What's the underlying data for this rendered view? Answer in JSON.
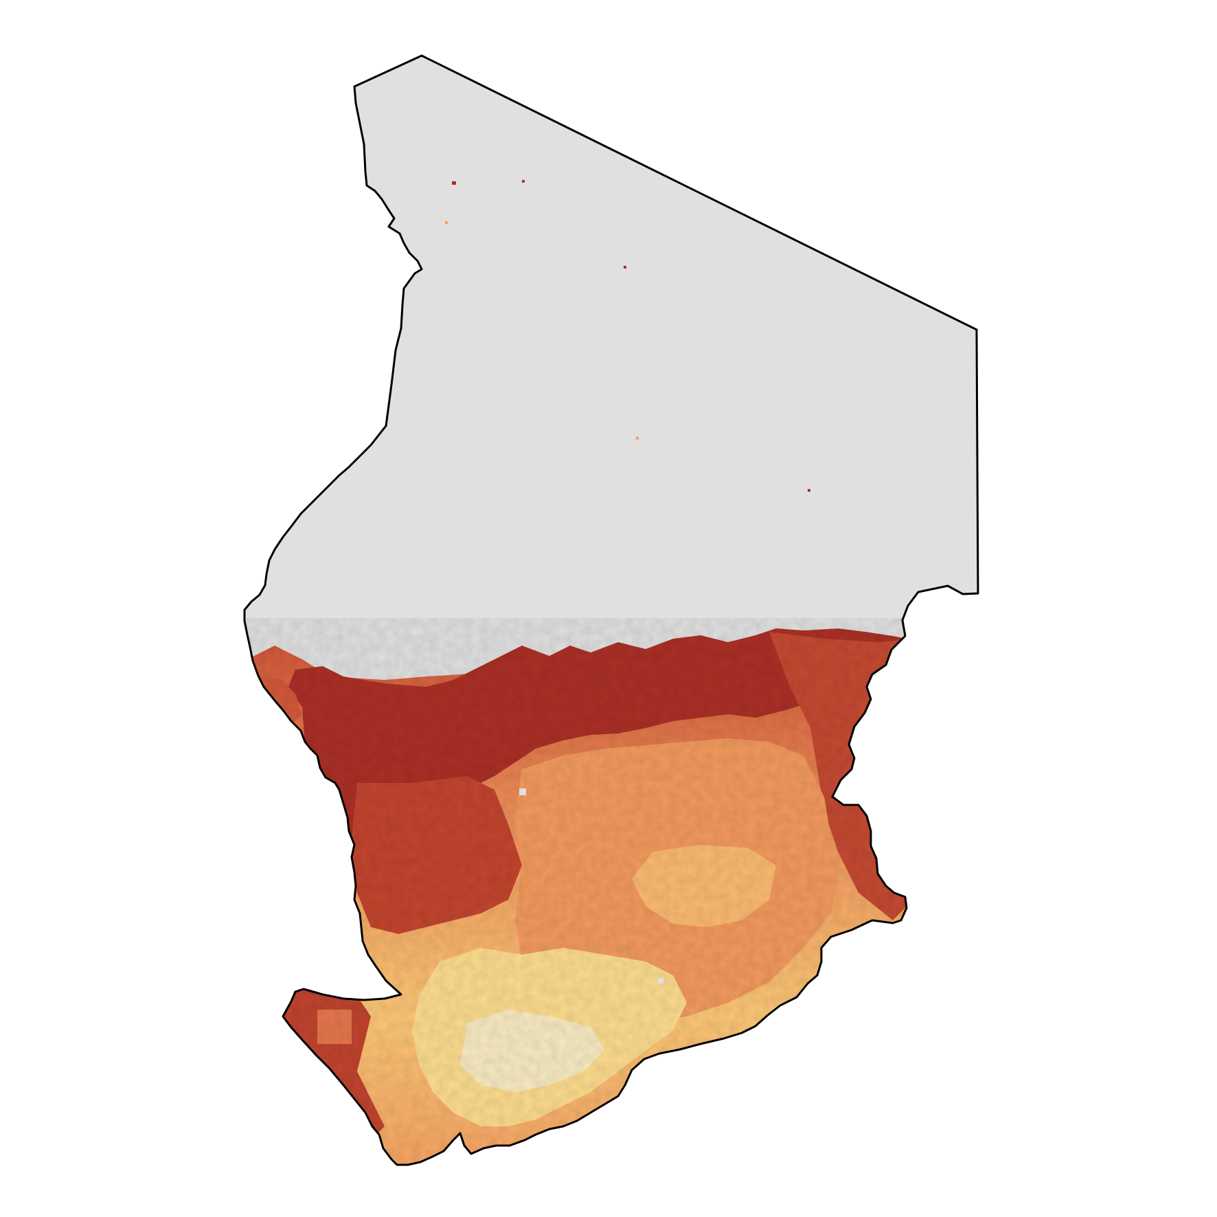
{
  "map": {
    "type": "choropleth-raster",
    "region_shape": "country outline with raster fill",
    "colors": {
      "no_data": "#e0e0e0",
      "border": "#000000",
      "ramp": [
        "#f7eecc",
        "#fde394",
        "#fcc877",
        "#f6a062",
        "#e6774d",
        "#cf5437",
        "#ab3026"
      ]
    }
  }
}
